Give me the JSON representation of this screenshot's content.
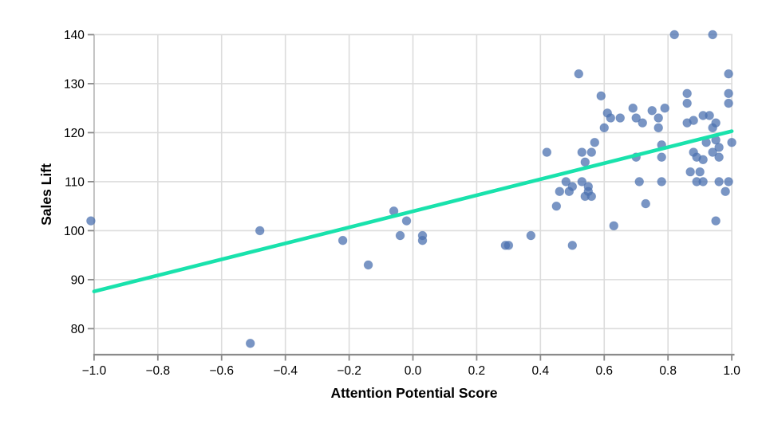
{
  "figure": {
    "background": "#ffffff"
  },
  "chart_data": {
    "type": "scatter",
    "title": "",
    "xlabel": "Attention Potential Score",
    "ylabel": "Sales Lift",
    "xlim": [
      -1.05,
      1.03
    ],
    "ylim": [
      74.5,
      141.5
    ],
    "grid": true,
    "legend": "none",
    "x_ticks": [
      -1.0,
      -0.8,
      -0.6,
      -0.4,
      -0.2,
      0.0,
      0.2,
      0.4,
      0.6,
      0.8,
      1.0
    ],
    "x_tick_labels": [
      "−1.0",
      "−0.8",
      "−0.6",
      "−0.4",
      "−0.2",
      "0.0",
      "0.2",
      "0.4",
      "0.6",
      "0.8",
      "1.0"
    ],
    "y_ticks": [
      80,
      90,
      100,
      110,
      120,
      130,
      140
    ],
    "y_tick_labels": [
      "80",
      "90",
      "100",
      "110",
      "120",
      "130",
      "140"
    ],
    "points": [
      [
        -1.01,
        102
      ],
      [
        -0.51,
        77
      ],
      [
        -0.48,
        100
      ],
      [
        -0.22,
        98
      ],
      [
        -0.14,
        93
      ],
      [
        -0.06,
        104
      ],
      [
        -0.04,
        99
      ],
      [
        -0.02,
        102
      ],
      [
        0.03,
        99
      ],
      [
        0.03,
        98
      ],
      [
        0.29,
        97
      ],
      [
        0.3,
        97
      ],
      [
        0.37,
        99
      ],
      [
        0.42,
        116
      ],
      [
        0.45,
        105
      ],
      [
        0.46,
        108
      ],
      [
        0.48,
        110
      ],
      [
        0.49,
        108
      ],
      [
        0.5,
        109
      ],
      [
        0.5,
        97
      ],
      [
        0.52,
        132
      ],
      [
        0.53,
        110
      ],
      [
        0.53,
        116
      ],
      [
        0.54,
        114
      ],
      [
        0.54,
        107
      ],
      [
        0.55,
        109
      ],
      [
        0.55,
        108
      ],
      [
        0.56,
        107
      ],
      [
        0.56,
        116
      ],
      [
        0.57,
        118
      ],
      [
        0.59,
        127.5
      ],
      [
        0.6,
        121
      ],
      [
        0.61,
        124
      ],
      [
        0.62,
        123
      ],
      [
        0.63,
        101
      ],
      [
        0.65,
        123
      ],
      [
        0.69,
        125
      ],
      [
        0.7,
        123
      ],
      [
        0.7,
        115
      ],
      [
        0.71,
        110
      ],
      [
        0.72,
        122
      ],
      [
        0.73,
        105.5
      ],
      [
        0.75,
        124.5
      ],
      [
        0.77,
        123
      ],
      [
        0.77,
        121
      ],
      [
        0.78,
        117.5
      ],
      [
        0.78,
        115
      ],
      [
        0.78,
        110
      ],
      [
        0.79,
        125
      ],
      [
        0.82,
        140
      ],
      [
        0.86,
        128
      ],
      [
        0.86,
        126
      ],
      [
        0.86,
        122
      ],
      [
        0.87,
        112
      ],
      [
        0.88,
        116
      ],
      [
        0.88,
        122.5
      ],
      [
        0.89,
        115
      ],
      [
        0.89,
        110
      ],
      [
        0.9,
        112
      ],
      [
        0.91,
        114.5
      ],
      [
        0.91,
        110
      ],
      [
        0.91,
        123.5
      ],
      [
        0.93,
        123.5
      ],
      [
        0.92,
        118
      ],
      [
        0.94,
        140
      ],
      [
        0.94,
        121
      ],
      [
        0.94,
        116
      ],
      [
        0.95,
        102
      ],
      [
        0.95,
        122
      ],
      [
        0.95,
        118.5
      ],
      [
        0.96,
        117
      ],
      [
        0.96,
        115
      ],
      [
        0.96,
        110
      ],
      [
        0.98,
        108
      ],
      [
        0.99,
        132
      ],
      [
        0.99,
        128
      ],
      [
        0.99,
        126
      ],
      [
        0.99,
        110
      ],
      [
        1.0,
        118
      ]
    ],
    "trend_line": {
      "x1": -1.0,
      "y1": 87.6,
      "x2": 1.0,
      "y2": 120.3
    },
    "colors": {
      "point": "#4C72B0",
      "point_opacity": 0.75,
      "trend": "#19E2AC",
      "grid": "#DCDCDC",
      "left_edge": "#BDBDBD",
      "spine": "#8A8A8A",
      "tick": "#8A8A8A",
      "text": "#000000"
    }
  }
}
